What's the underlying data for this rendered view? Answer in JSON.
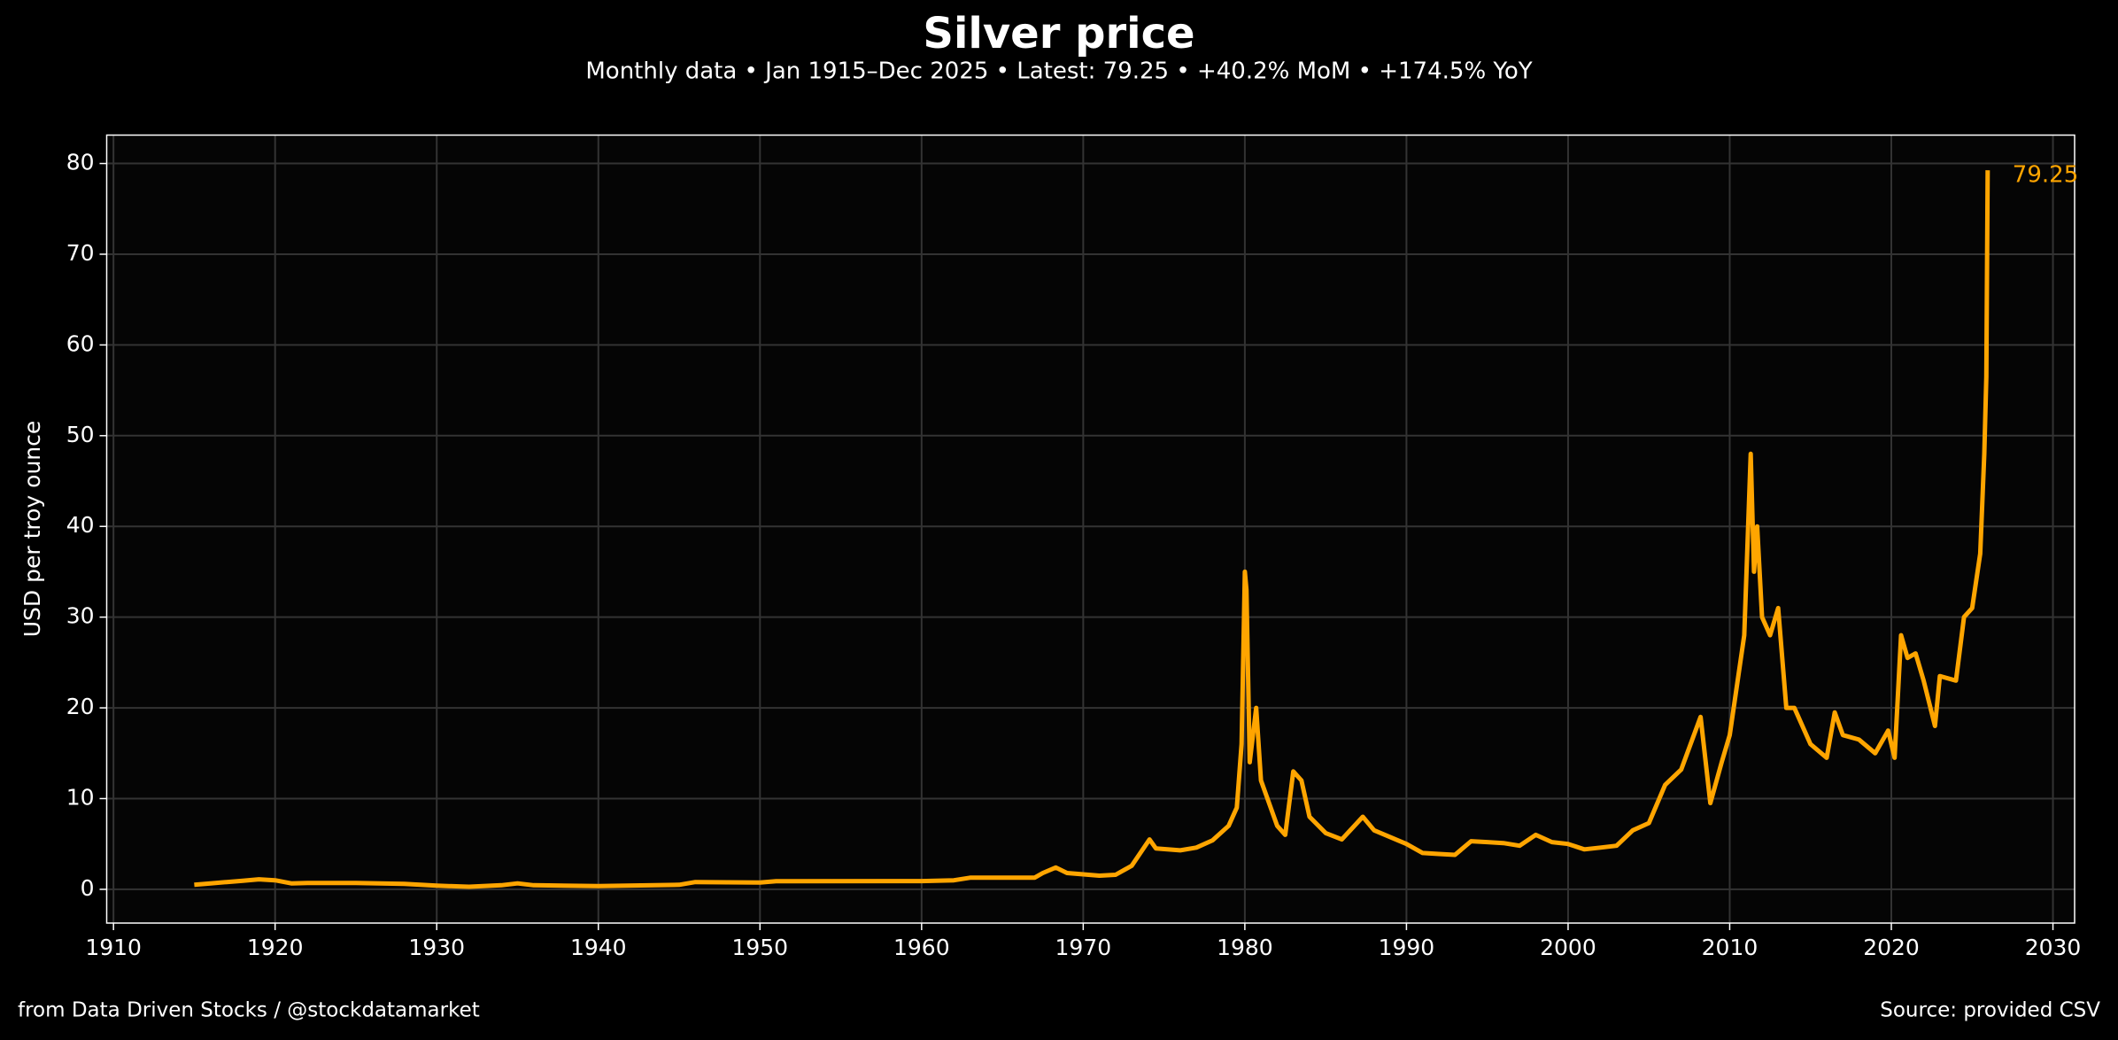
{
  "chart_data": {
    "type": "line",
    "title": "Silver price",
    "subtitle": "Monthly data • Jan 1915–Dec 2025 • Latest: 79.25 • +40.2% MoM • +174.5% YoY",
    "ylabel": "USD per troy ounce",
    "footer_left": "from Data Driven Stocks / @stockdatamarket",
    "footer_right": "Source: provided CSV",
    "color": "#ffa500",
    "grid": true,
    "x": [
      1915,
      1916,
      1917,
      1918,
      1919,
      1920,
      1921,
      1922,
      1925,
      1928,
      1930,
      1932,
      1934,
      1935,
      1936,
      1940,
      1945,
      1946,
      1950,
      1951,
      1960,
      1962,
      1963,
      1967,
      1967.5,
      1968.3,
      1969,
      1971,
      1972,
      1973,
      1974.1,
      1974.5,
      1976,
      1977,
      1978,
      1979,
      1979.5,
      1979.8,
      1980,
      1980.1,
      1980.3,
      1980.7,
      1981,
      1982,
      1982.5,
      1983,
      1983.5,
      1984,
      1985,
      1986,
      1987.3,
      1988,
      1990,
      1991,
      1992,
      1993,
      1994,
      1995,
      1996,
      1997,
      1998,
      1999,
      2000,
      2001,
      2002,
      2003,
      2004,
      2005,
      2006,
      2007,
      2008.2,
      2008.8,
      2009.5,
      2010,
      2010.9,
      2011.3,
      2011.5,
      2011.7,
      2012,
      2012.5,
      2013,
      2013.5,
      2014,
      2015,
      2016,
      2016.5,
      2017,
      2018,
      2019,
      2019.8,
      2020.2,
      2020.6,
      2021,
      2021.5,
      2022,
      2022.7,
      2023,
      2024,
      2024.5,
      2025,
      2025.5,
      2025.75,
      2025.88,
      2025.96
    ],
    "values": [
      0.5,
      0.65,
      0.8,
      0.95,
      1.1,
      1.0,
      0.65,
      0.7,
      0.7,
      0.6,
      0.4,
      0.28,
      0.45,
      0.65,
      0.45,
      0.35,
      0.5,
      0.8,
      0.75,
      0.9,
      0.91,
      1.0,
      1.28,
      1.29,
      1.8,
      2.4,
      1.8,
      1.5,
      1.6,
      2.6,
      5.5,
      4.5,
      4.3,
      4.6,
      5.4,
      7,
      9,
      16,
      35,
      33,
      14,
      20,
      12,
      7,
      6,
      13,
      12,
      8,
      6.2,
      5.5,
      8,
      6.5,
      5,
      4,
      3.9,
      3.8,
      5.3,
      5.2,
      5.1,
      4.8,
      6,
      5.2,
      5,
      4.4,
      4.6,
      4.8,
      6.5,
      7.3,
      11.5,
      13.2,
      19,
      9.5,
      14,
      17,
      28,
      48,
      35,
      40,
      30,
      28,
      31,
      20,
      20,
      16,
      14.5,
      19.5,
      17,
      16.5,
      15,
      17.5,
      14.5,
      28,
      25.5,
      26,
      23,
      18,
      23.5,
      23,
      30,
      31,
      37,
      48,
      56.5,
      79.25
    ],
    "xlim": [
      1909.58,
      2031.34
    ],
    "xticks": [
      1910,
      1920,
      1930,
      1940,
      1950,
      1960,
      1970,
      1980,
      1990,
      2000,
      2010,
      2020,
      2030
    ],
    "ylim": [
      -3.72,
      83.13
    ],
    "yticks": [
      0,
      10,
      20,
      30,
      40,
      50,
      60,
      70,
      80
    ]
  }
}
